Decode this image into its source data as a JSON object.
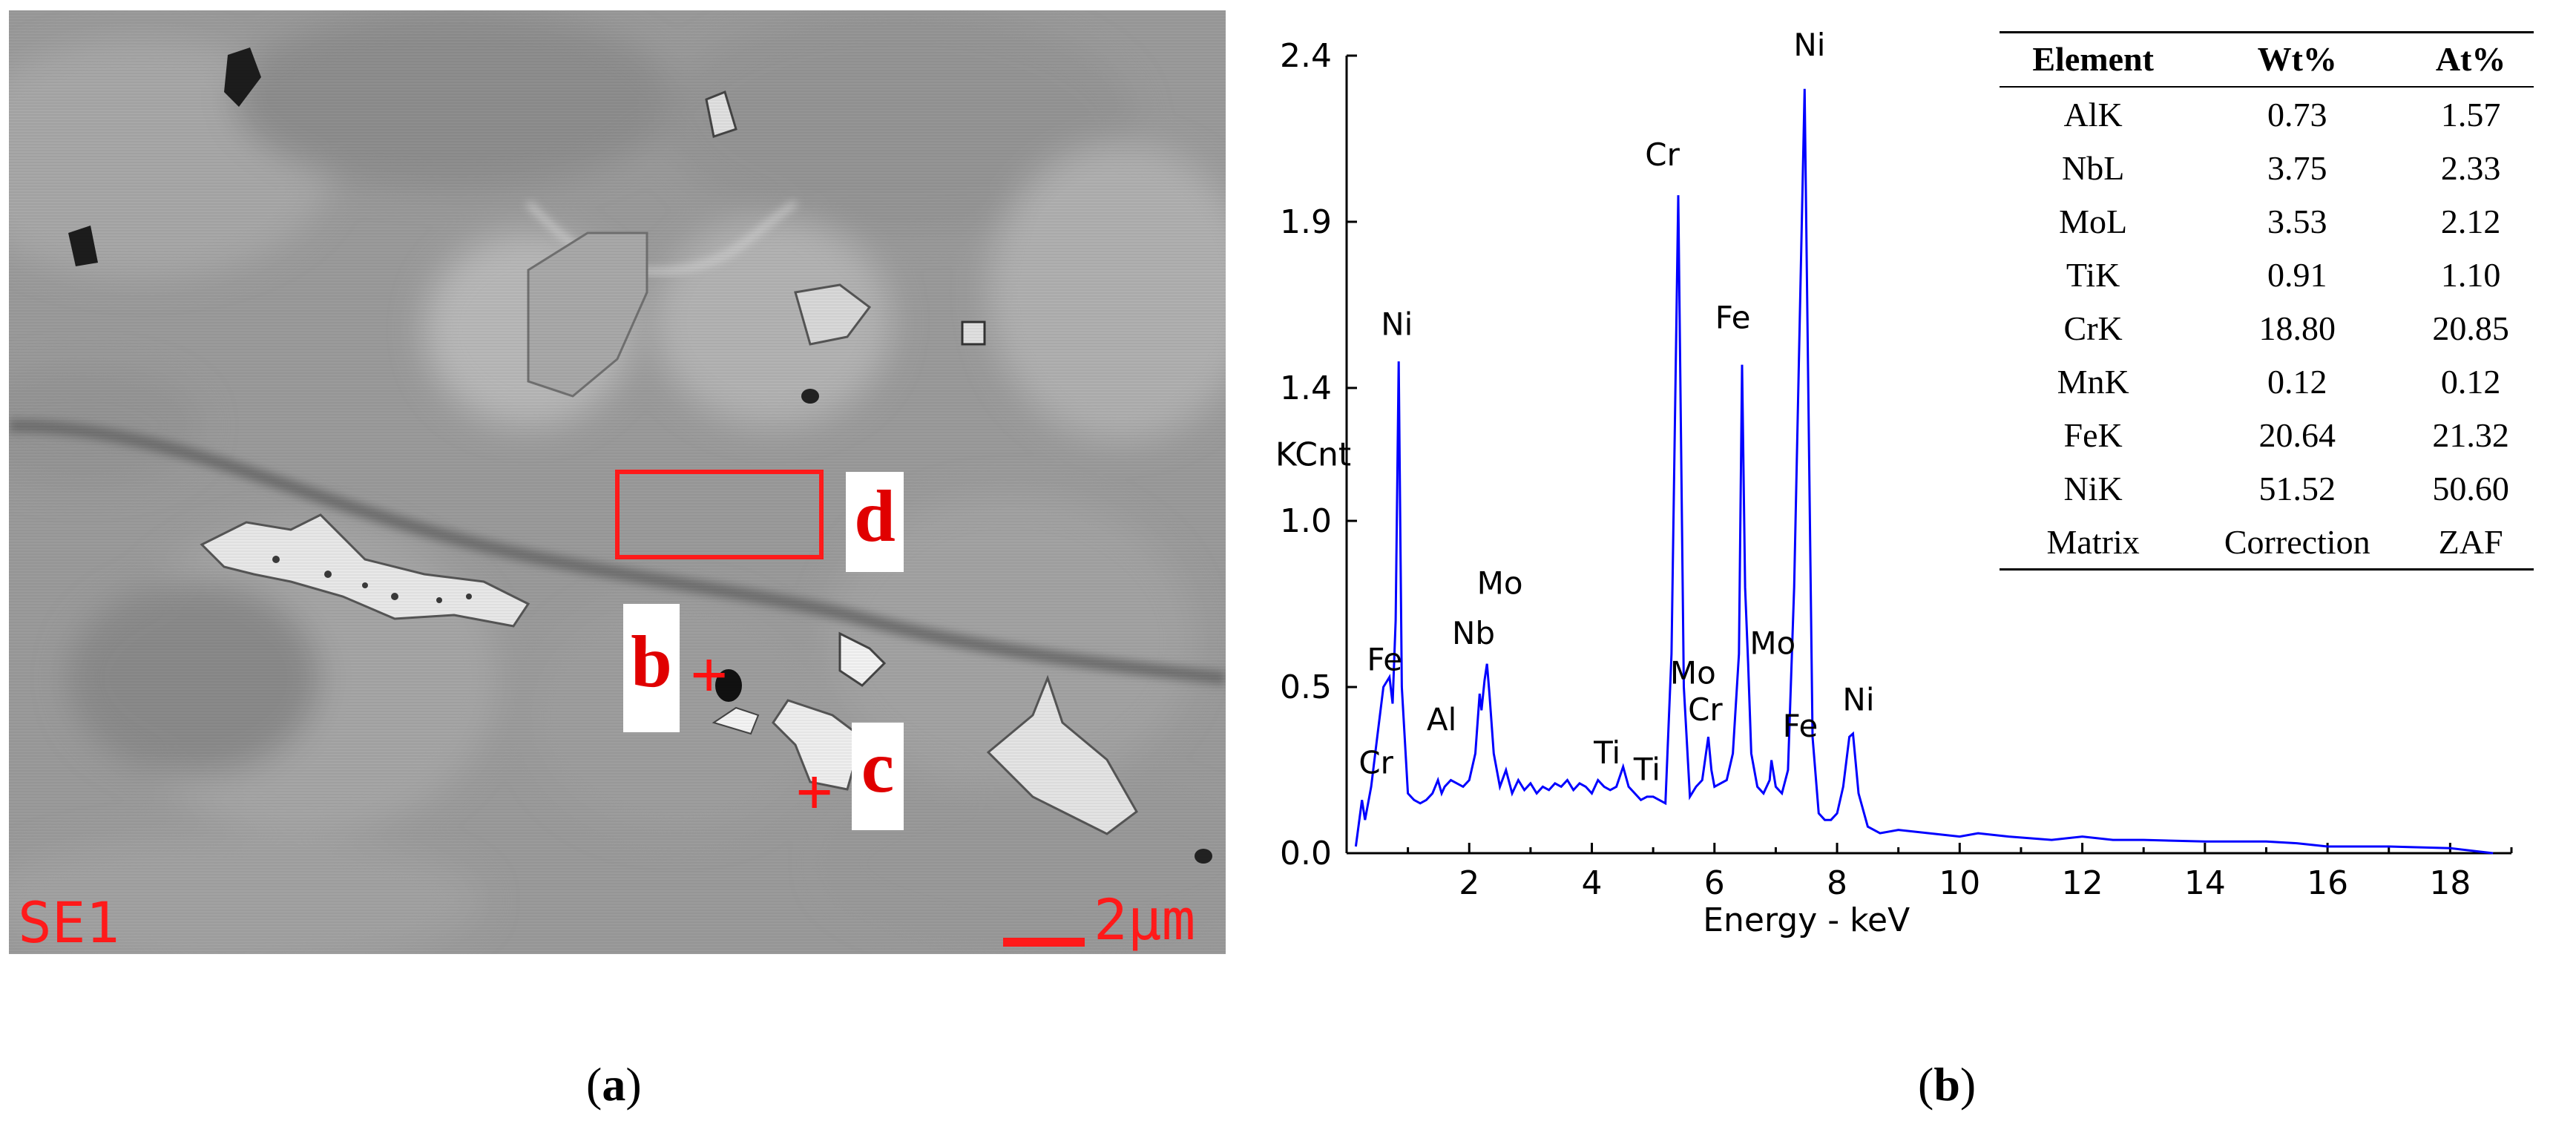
{
  "panel_a": {
    "label_d": "d",
    "label_b": "b",
    "label_c": "c",
    "marker": "+",
    "detector_label": "SE1",
    "scale_label": "2μm"
  },
  "panel_b": {
    "table": {
      "headers": [
        "Element",
        "Wt%",
        "At%"
      ],
      "rows": [
        [
          "AlK",
          "0.73",
          "1.57"
        ],
        [
          "NbL",
          "3.75",
          "2.33"
        ],
        [
          "MoL",
          "3.53",
          "2.12"
        ],
        [
          "TiK",
          "0.91",
          "1.10"
        ],
        [
          "CrK",
          "18.80",
          "20.85"
        ],
        [
          "MnK",
          "0.12",
          "0.12"
        ],
        [
          "FeK",
          "20.64",
          "21.32"
        ],
        [
          "NiK",
          "51.52",
          "50.60"
        ],
        [
          "Matrix",
          "Correction",
          "ZAF"
        ]
      ]
    }
  },
  "captions": {
    "a": "a",
    "b": "b"
  },
  "chart_data": {
    "type": "line",
    "xlabel": "Energy - keV",
    "ylabel": "KCnt",
    "xlim": [
      0,
      19
    ],
    "ylim": [
      0,
      2.4
    ],
    "xticks": [
      "2",
      "4",
      "6",
      "8",
      "10",
      "12",
      "14",
      "16",
      "18"
    ],
    "yticks": [
      "0.0",
      "0.5",
      "1.0",
      "1.4",
      "1.9",
      "2.4"
    ],
    "line_color": "#0000ff",
    "series": [
      {
        "x": [
          0.15,
          0.25,
          0.3,
          0.4,
          0.5,
          0.6,
          0.7,
          0.75,
          0.8,
          0.85,
          0.9,
          1.0,
          1.1,
          1.2,
          1.3,
          1.4,
          1.49,
          1.55,
          1.6,
          1.7,
          1.8,
          1.9,
          2.0,
          2.1,
          2.17,
          2.2,
          2.25,
          2.29,
          2.33,
          2.4,
          2.5,
          2.6,
          2.7,
          2.8,
          2.9,
          3.0,
          3.1,
          3.2,
          3.3,
          3.4,
          3.5,
          3.6,
          3.7,
          3.8,
          3.9,
          4.0,
          4.1,
          4.2,
          4.3,
          4.4,
          4.51,
          4.6,
          4.7,
          4.8,
          4.9,
          5.0,
          5.1,
          5.2,
          5.3,
          5.41,
          5.5,
          5.6,
          5.7,
          5.8,
          5.9,
          5.95,
          6.0,
          6.1,
          6.2,
          6.3,
          6.4,
          6.45,
          6.5,
          6.55,
          6.6,
          6.7,
          6.8,
          6.9,
          6.93,
          7.0,
          7.1,
          7.2,
          7.3,
          7.47,
          7.6,
          7.7,
          7.8,
          7.9,
          8.0,
          8.1,
          8.2,
          8.26,
          8.35,
          8.5,
          8.7,
          9.0,
          9.5,
          10.0,
          10.3,
          10.8,
          11.5,
          12.0,
          12.5,
          13.0,
          14.0,
          15.0,
          15.5,
          16.0,
          17.0,
          18.0,
          18.7
        ],
        "y": [
          0.02,
          0.16,
          0.1,
          0.2,
          0.35,
          0.5,
          0.53,
          0.45,
          0.7,
          1.48,
          0.5,
          0.18,
          0.16,
          0.15,
          0.16,
          0.18,
          0.22,
          0.18,
          0.2,
          0.22,
          0.21,
          0.2,
          0.22,
          0.3,
          0.48,
          0.43,
          0.52,
          0.57,
          0.48,
          0.3,
          0.2,
          0.25,
          0.18,
          0.22,
          0.19,
          0.21,
          0.18,
          0.2,
          0.19,
          0.21,
          0.2,
          0.22,
          0.19,
          0.21,
          0.2,
          0.18,
          0.22,
          0.2,
          0.19,
          0.2,
          0.26,
          0.2,
          0.18,
          0.16,
          0.17,
          0.17,
          0.16,
          0.15,
          0.6,
          1.98,
          0.5,
          0.17,
          0.2,
          0.22,
          0.35,
          0.25,
          0.2,
          0.21,
          0.22,
          0.3,
          0.6,
          1.47,
          0.8,
          0.57,
          0.3,
          0.2,
          0.18,
          0.22,
          0.28,
          0.2,
          0.18,
          0.25,
          0.8,
          2.3,
          0.35,
          0.12,
          0.1,
          0.1,
          0.12,
          0.2,
          0.35,
          0.36,
          0.18,
          0.08,
          0.06,
          0.07,
          0.06,
          0.05,
          0.06,
          0.05,
          0.04,
          0.05,
          0.04,
          0.04,
          0.035,
          0.035,
          0.03,
          0.02,
          0.02,
          0.015,
          0.0
        ]
      }
    ],
    "peak_labels": [
      {
        "text": "Cr",
        "x": 0.48,
        "y": 0.24
      },
      {
        "text": "Fe",
        "x": 0.62,
        "y": 0.55
      },
      {
        "text": "Ni",
        "x": 0.82,
        "y": 1.56
      },
      {
        "text": "Al",
        "x": 1.55,
        "y": 0.37
      },
      {
        "text": "Nb",
        "x": 2.07,
        "y": 0.63
      },
      {
        "text": "Mo",
        "x": 2.5,
        "y": 0.78
      },
      {
        "text": "Ti",
        "x": 4.25,
        "y": 0.27
      },
      {
        "text": "Ti",
        "x": 4.9,
        "y": 0.22
      },
      {
        "text": "Mo",
        "x": 5.65,
        "y": 0.51
      },
      {
        "text": "Cr",
        "x": 5.85,
        "y": 0.4
      },
      {
        "text": "Cr",
        "x": 5.15,
        "y": 2.07
      },
      {
        "text": "Fe",
        "x": 6.3,
        "y": 1.58
      },
      {
        "text": "Mo",
        "x": 6.95,
        "y": 0.6
      },
      {
        "text": "Fe",
        "x": 7.4,
        "y": 0.35
      },
      {
        "text": "Ni",
        "x": 7.55,
        "y": 2.4
      },
      {
        "text": "Ni",
        "x": 8.35,
        "y": 0.43
      }
    ]
  }
}
